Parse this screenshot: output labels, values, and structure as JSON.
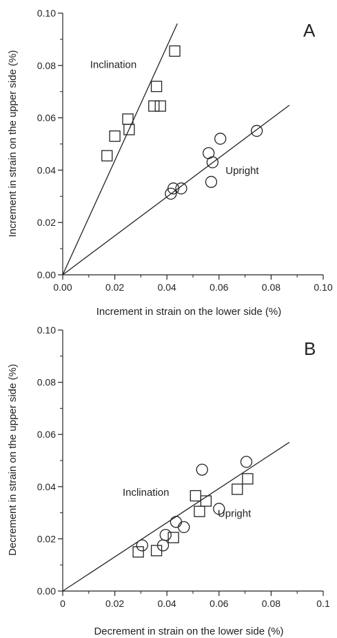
{
  "chart_data": [
    {
      "type": "scatter",
      "panel_label": "A",
      "xlabel": "Increment in strain on the lower side (%)",
      "ylabel": "Increment in strain on the upper side (%)",
      "xlim": [
        0,
        0.1
      ],
      "ylim": [
        0,
        0.1
      ],
      "x_ticks": [
        "0.00",
        "0.02",
        "0.04",
        "0.06",
        "0.08",
        "0.10"
      ],
      "y_ticks": [
        "0.00",
        "0.02",
        "0.04",
        "0.06",
        "0.08",
        "0.10"
      ],
      "grid": false,
      "series": [
        {
          "name": "Inclination",
          "marker": "square",
          "points": [
            [
              0.017,
              0.0455
            ],
            [
              0.02,
              0.053
            ],
            [
              0.025,
              0.0595
            ],
            [
              0.0255,
              0.0555
            ],
            [
              0.035,
              0.0645
            ],
            [
              0.036,
              0.072
            ],
            [
              0.0375,
              0.0645
            ],
            [
              0.043,
              0.0855
            ]
          ],
          "fit_line": [
            [
              0,
              0
            ],
            [
              0.044,
              0.096
            ]
          ]
        },
        {
          "name": "Upright",
          "marker": "circle",
          "points": [
            [
              0.0415,
              0.031
            ],
            [
              0.0425,
              0.033
            ],
            [
              0.0455,
              0.033
            ],
            [
              0.056,
              0.0465
            ],
            [
              0.057,
              0.0355
            ],
            [
              0.0575,
              0.043
            ],
            [
              0.0605,
              0.052
            ],
            [
              0.0745,
              0.055
            ]
          ],
          "fit_line": [
            [
              0,
              0
            ],
            [
              0.087,
              0.0648
            ]
          ]
        }
      ],
      "annotations": [
        {
          "text": "Inclination",
          "x": 0.0105,
          "y": 0.079
        },
        {
          "text": "Upright",
          "x": 0.0625,
          "y": 0.0385
        }
      ]
    },
    {
      "type": "scatter",
      "panel_label": "B",
      "xlabel": "Decrement in strain on the lower side (%)",
      "ylabel": "Decrement in strain on the upper side (%)",
      "xlim": [
        0,
        0.1
      ],
      "ylim": [
        0,
        0.1
      ],
      "x_ticks": [
        "0",
        "0.02",
        "0.04",
        "0.06",
        "0.08",
        "0.1"
      ],
      "y_ticks": [
        "0.00",
        "0.02",
        "0.04",
        "0.06",
        "0.08",
        "0.10"
      ],
      "grid": false,
      "series": [
        {
          "name": "Inclination",
          "marker": "square",
          "points": [
            [
              0.029,
              0.015
            ],
            [
              0.036,
              0.0155
            ],
            [
              0.0425,
              0.0205
            ],
            [
              0.051,
              0.0365
            ],
            [
              0.0525,
              0.0305
            ],
            [
              0.055,
              0.0345
            ],
            [
              0.067,
              0.039
            ],
            [
              0.071,
              0.043
            ]
          ]
        },
        {
          "name": "Upright",
          "marker": "circle",
          "points": [
            [
              0.0305,
              0.0175
            ],
            [
              0.0385,
              0.0175
            ],
            [
              0.0395,
              0.0215
            ],
            [
              0.0435,
              0.0265
            ],
            [
              0.0465,
              0.0245
            ],
            [
              0.0535,
              0.0465
            ],
            [
              0.06,
              0.0315
            ],
            [
              0.0705,
              0.0495
            ]
          ]
        }
      ],
      "fit_line": [
        [
          0,
          0
        ],
        [
          0.087,
          0.057
        ]
      ],
      "annotations": [
        {
          "text": "Inclination",
          "x": 0.023,
          "y": 0.0365
        },
        {
          "text": "Upright",
          "x": 0.0595,
          "y": 0.0285
        }
      ]
    }
  ]
}
